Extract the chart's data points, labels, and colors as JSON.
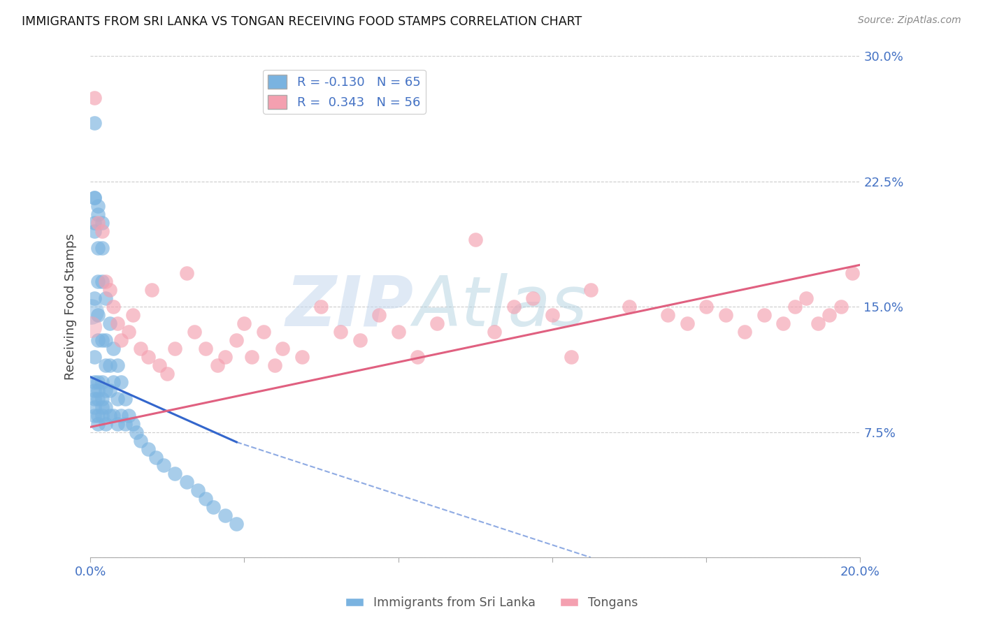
{
  "title": "IMMIGRANTS FROM SRI LANKA VS TONGAN RECEIVING FOOD STAMPS CORRELATION CHART",
  "source": "Source: ZipAtlas.com",
  "ylabel": "Receiving Food Stamps",
  "xlim": [
    0.0,
    0.2
  ],
  "ylim": [
    0.0,
    0.3
  ],
  "yticks": [
    0.0,
    0.075,
    0.15,
    0.225,
    0.3
  ],
  "ytick_labels_right": [
    "",
    "7.5%",
    "15.0%",
    "22.5%",
    "30.0%"
  ],
  "xticks": [
    0.0,
    0.04,
    0.08,
    0.12,
    0.16,
    0.2
  ],
  "xtick_labels": [
    "0.0%",
    "",
    "",
    "",
    "",
    "20.0%"
  ],
  "sri_lanka_R": -0.13,
  "sri_lanka_N": 65,
  "tongan_R": 0.343,
  "tongan_N": 56,
  "sri_lanka_color": "#7ab3e0",
  "tongan_color": "#f4a0b0",
  "sri_lanka_line_color": "#3366cc",
  "tongan_line_color": "#e06080",
  "watermark_text": "ZIPAtlas",
  "watermark_color": "#ccddf0",
  "background_color": "#ffffff",
  "sri_lanka_x": [
    0.001,
    0.001,
    0.001,
    0.001,
    0.001,
    0.001,
    0.001,
    0.001,
    0.001,
    0.001,
    0.001,
    0.001,
    0.002,
    0.002,
    0.002,
    0.002,
    0.002,
    0.002,
    0.002,
    0.002,
    0.002,
    0.002,
    0.002,
    0.003,
    0.003,
    0.003,
    0.003,
    0.003,
    0.003,
    0.003,
    0.003,
    0.004,
    0.004,
    0.004,
    0.004,
    0.004,
    0.004,
    0.005,
    0.005,
    0.005,
    0.005,
    0.006,
    0.006,
    0.006,
    0.007,
    0.007,
    0.007,
    0.008,
    0.008,
    0.009,
    0.009,
    0.01,
    0.011,
    0.012,
    0.013,
    0.015,
    0.017,
    0.019,
    0.022,
    0.025,
    0.028,
    0.03,
    0.032,
    0.035,
    0.038
  ],
  "sri_lanka_y": [
    0.26,
    0.215,
    0.215,
    0.2,
    0.195,
    0.155,
    0.12,
    0.105,
    0.1,
    0.095,
    0.09,
    0.085,
    0.21,
    0.205,
    0.185,
    0.165,
    0.145,
    0.13,
    0.105,
    0.1,
    0.095,
    0.085,
    0.08,
    0.2,
    0.185,
    0.165,
    0.13,
    0.105,
    0.095,
    0.09,
    0.085,
    0.155,
    0.13,
    0.115,
    0.1,
    0.09,
    0.08,
    0.14,
    0.115,
    0.1,
    0.085,
    0.125,
    0.105,
    0.085,
    0.115,
    0.095,
    0.08,
    0.105,
    0.085,
    0.095,
    0.08,
    0.085,
    0.08,
    0.075,
    0.07,
    0.065,
    0.06,
    0.055,
    0.05,
    0.045,
    0.04,
    0.035,
    0.03,
    0.025,
    0.02
  ],
  "tongan_x": [
    0.001,
    0.002,
    0.003,
    0.004,
    0.005,
    0.006,
    0.007,
    0.008,
    0.01,
    0.011,
    0.013,
    0.015,
    0.016,
    0.018,
    0.02,
    0.022,
    0.025,
    0.027,
    0.03,
    0.033,
    0.035,
    0.038,
    0.04,
    0.042,
    0.045,
    0.048,
    0.05,
    0.055,
    0.06,
    0.065,
    0.07,
    0.075,
    0.08,
    0.085,
    0.09,
    0.1,
    0.105,
    0.11,
    0.115,
    0.12,
    0.125,
    0.13,
    0.14,
    0.15,
    0.155,
    0.16,
    0.165,
    0.17,
    0.175,
    0.18,
    0.183,
    0.186,
    0.189,
    0.192,
    0.195,
    0.198
  ],
  "tongan_y": [
    0.275,
    0.2,
    0.195,
    0.165,
    0.16,
    0.15,
    0.14,
    0.13,
    0.135,
    0.145,
    0.125,
    0.12,
    0.16,
    0.115,
    0.11,
    0.125,
    0.17,
    0.135,
    0.125,
    0.115,
    0.12,
    0.13,
    0.14,
    0.12,
    0.135,
    0.115,
    0.125,
    0.12,
    0.15,
    0.135,
    0.13,
    0.145,
    0.135,
    0.12,
    0.14,
    0.19,
    0.135,
    0.15,
    0.155,
    0.145,
    0.12,
    0.16,
    0.15,
    0.145,
    0.14,
    0.15,
    0.145,
    0.135,
    0.145,
    0.14,
    0.15,
    0.155,
    0.14,
    0.145,
    0.15,
    0.17
  ],
  "sri_lanka_line_x0": 0.0,
  "sri_lanka_line_x_solid_end": 0.038,
  "sri_lanka_line_x_dash_end": 0.13,
  "sri_lanka_line_y0": 0.108,
  "sri_lanka_line_y_solid_end": 0.069,
  "sri_lanka_line_y_dash_end": 0.0,
  "tongan_line_x0": 0.0,
  "tongan_line_x1": 0.2,
  "tongan_line_y0": 0.078,
  "tongan_line_y1": 0.175
}
